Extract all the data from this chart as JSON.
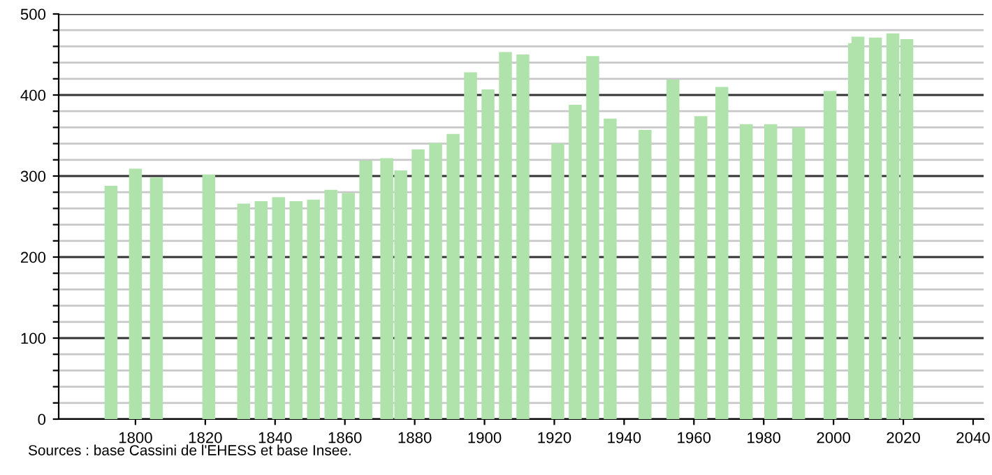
{
  "chart_data": {
    "type": "bar",
    "x": [
      1793,
      1800,
      1806,
      1821,
      1831,
      1836,
      1841,
      1846,
      1851,
      1856,
      1861,
      1866,
      1872,
      1876,
      1881,
      1886,
      1891,
      1896,
      1901,
      1906,
      1911,
      1921,
      1926,
      1931,
      1936,
      1946,
      1954,
      1962,
      1968,
      1975,
      1982,
      1990,
      1999,
      2006,
      2007,
      2012,
      2017,
      2021
    ],
    "values": [
      288,
      309,
      298,
      302,
      266,
      269,
      274,
      269,
      271,
      283,
      279,
      319,
      322,
      307,
      333,
      341,
      352,
      428,
      407,
      453,
      450,
      340,
      388,
      448,
      371,
      357,
      419,
      374,
      410,
      364,
      364,
      360,
      405,
      464,
      472,
      471,
      476,
      469
    ],
    "color": "#b0e3ac",
    "xlim": [
      1778,
      2043
    ],
    "xticks": [
      1800,
      1820,
      1840,
      1860,
      1880,
      1900,
      1920,
      1940,
      1960,
      1980,
      2000,
      2020,
      2040
    ],
    "ylim": [
      0,
      500
    ],
    "yticks": [
      0,
      {
        "value": 20,
        "label": null
      },
      {
        "value": 40,
        "label": null
      },
      {
        "value": 60,
        "label": null
      },
      {
        "value": 80,
        "label": null
      },
      100,
      {
        "value": 120,
        "label": null
      },
      {
        "value": 140,
        "label": null
      },
      {
        "value": 160,
        "label": null
      },
      {
        "value": 180,
        "label": null
      },
      200,
      {
        "value": 220,
        "label": null
      },
      {
        "value": 240,
        "label": null
      },
      {
        "value": 260,
        "label": null
      },
      {
        "value": 280,
        "label": null
      },
      300,
      {
        "value": 320,
        "label": null
      },
      {
        "value": 340,
        "label": null
      },
      {
        "value": 360,
        "label": null
      },
      {
        "value": 380,
        "label": null
      },
      400,
      {
        "value": 420,
        "label": null
      },
      {
        "value": 440,
        "label": null
      },
      {
        "value": 460,
        "label": null
      },
      {
        "value": 480,
        "label": null
      },
      500
    ],
    "grid": "y",
    "annotations": [
      "Sources : base Cassini de l'EHESS et base Insee."
    ]
  }
}
